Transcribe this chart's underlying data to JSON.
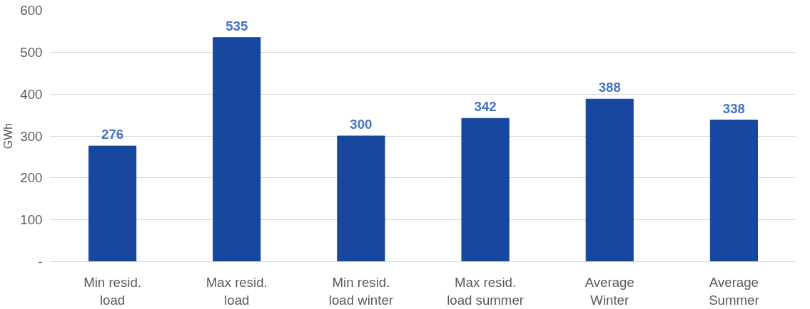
{
  "chart_data": {
    "type": "bar",
    "ylabel": "GWh",
    "categories": [
      "Min resid.\nload",
      "Max resid.\nload",
      "Min resid.\nload winter",
      "Max resid.\nload summer",
      "Average\nWinter",
      "Average\nSummer"
    ],
    "values": [
      276,
      535,
      300,
      342,
      388,
      338
    ],
    "color": "#17479e",
    "data_labels": true,
    "ylim": [
      0,
      600
    ],
    "yticks": [
      {
        "value": 0,
        "label": "-"
      },
      100,
      200,
      300,
      400,
      500,
      600
    ],
    "grid": "y"
  }
}
